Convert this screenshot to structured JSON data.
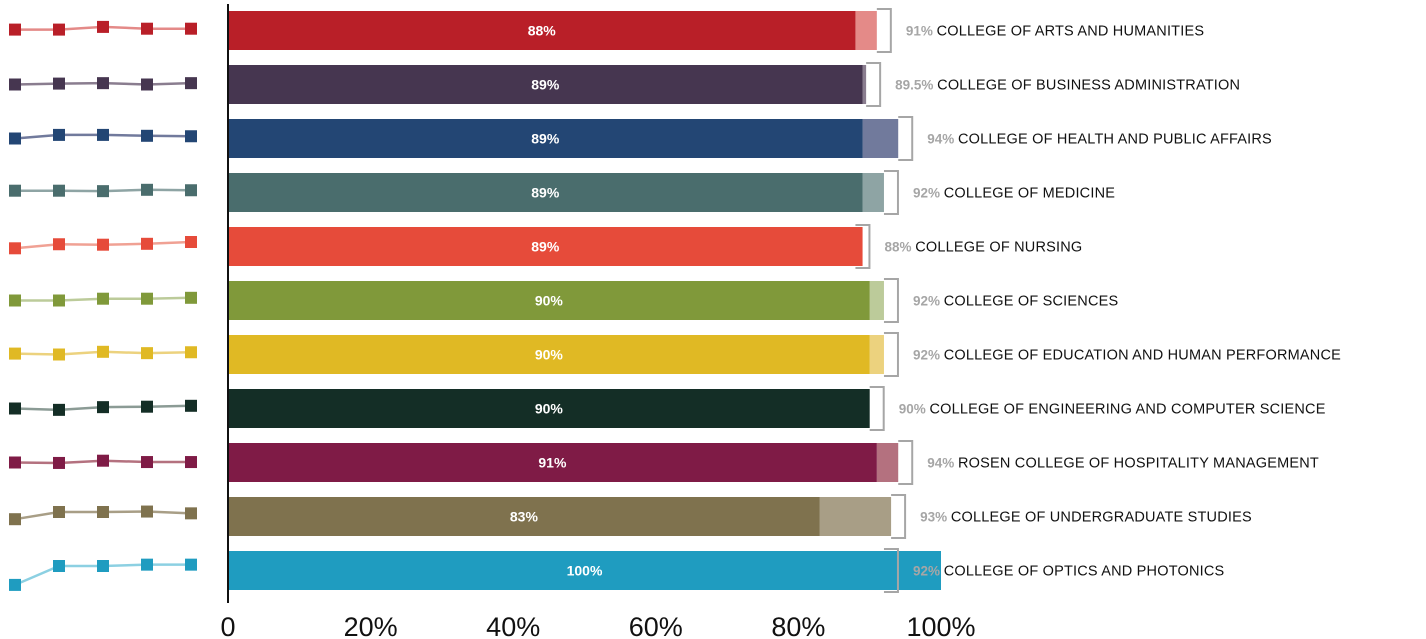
{
  "chart_data": {
    "type": "bar",
    "orientation": "horizontal",
    "xlim": [
      0,
      100
    ],
    "x_ticks": [
      "0",
      "20%",
      "40%",
      "60%",
      "80%",
      "100%"
    ],
    "grid": false,
    "legend": "none",
    "categories": [
      "COLLEGE OF ARTS AND HUMANITIES",
      "COLLEGE OF BUSINESS ADMINISTRATION",
      "COLLEGE OF HEALTH AND PUBLIC AFFAIRS",
      "COLLEGE OF MEDICINE",
      "COLLEGE OF NURSING",
      "COLLEGE OF SCIENCES",
      "COLLEGE OF EDUCATION AND HUMAN PERFORMANCE",
      "COLLEGE OF ENGINEERING AND COMPUTER SCIENCE",
      "ROSEN COLLEGE OF HOSPITALITY MANAGEMENT",
      "COLLEGE OF UNDERGRADUATE STUDIES",
      "COLLEGE OF OPTICS AND PHOTONICS"
    ],
    "values": [
      88,
      89,
      89,
      89,
      89,
      90,
      90,
      90,
      91,
      83,
      100
    ],
    "value_labels": [
      "88%",
      "89%",
      "89%",
      "89%",
      "89%",
      "90%",
      "90%",
      "90%",
      "91%",
      "83%",
      "100%"
    ],
    "comparison_values": [
      91,
      89.5,
      94,
      92,
      88,
      92,
      92,
      90,
      94,
      93,
      92
    ],
    "comparison_labels": [
      "91%",
      "89.5%",
      "94%",
      "92%",
      "88%",
      "92%",
      "92%",
      "90%",
      "94%",
      "93%",
      "92%"
    ],
    "colors": [
      "#b91f28",
      "#463650",
      "#234674",
      "#4a6d6d",
      "#e64b3a",
      "#80993a",
      "#e0b924",
      "#142e26",
      "#7f1b46",
      "#7f724e",
      "#1f9cc0"
    ],
    "light_colors": [
      "#e48a88",
      "#8a7d8f",
      "#717a9c",
      "#8ea4a4",
      "#f0a194",
      "#bccb9a",
      "#ecd27e",
      "#8b9b95",
      "#b4717f",
      "#a89e86",
      "#8cd0e2"
    ],
    "trend_series": [
      [
        52,
        52,
        58,
        54,
        54
      ],
      [
        50,
        52,
        53,
        50,
        53
      ],
      [
        50,
        58,
        58,
        56,
        55
      ],
      [
        54,
        54,
        53,
        56,
        55
      ],
      [
        46,
        55,
        54,
        56,
        60
      ],
      [
        50,
        50,
        54,
        54,
        56
      ],
      [
        52,
        50,
        56,
        53,
        55
      ],
      [
        50,
        47,
        53,
        54,
        56
      ],
      [
        50,
        49,
        54,
        51,
        51
      ],
      [
        44,
        60,
        60,
        61,
        57
      ],
      [
        18,
        60,
        60,
        63,
        63
      ]
    ]
  }
}
